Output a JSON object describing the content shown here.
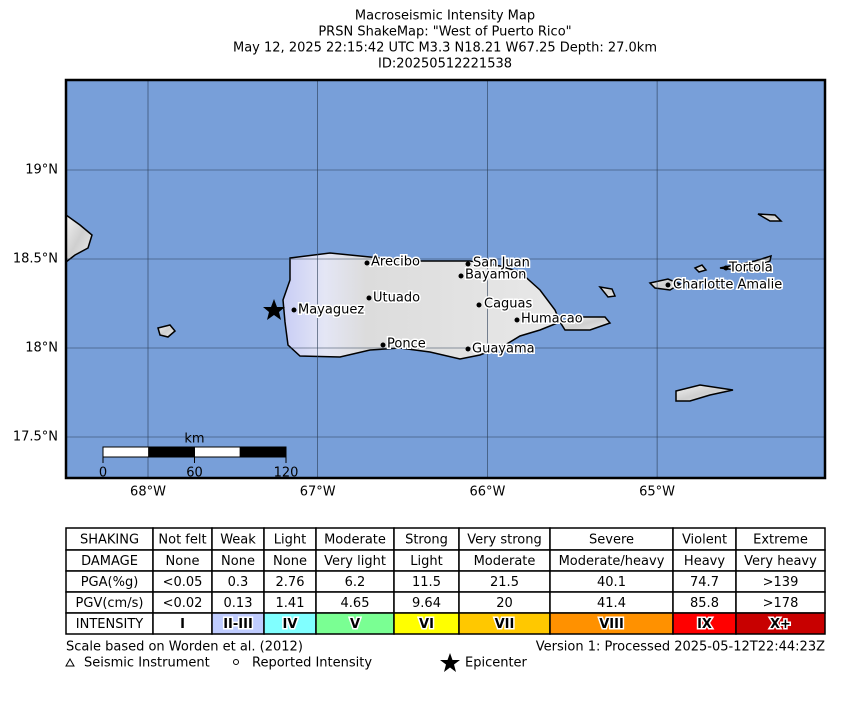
{
  "header": {
    "title": "Macroseismic Intensity Map",
    "subtitle": "PRSN ShakeMap: \"West of Puerto Rico\"",
    "event": "May 12, 2025 22:15:42 UTC M3.3 N18.21 W67.25 Depth: 27.0km",
    "id": "ID:20250512221538"
  },
  "map": {
    "lon_ticks": [
      {
        "value": -68,
        "label": "68°W"
      },
      {
        "value": -67,
        "label": "67°W"
      },
      {
        "value": -66,
        "label": "66°W"
      },
      {
        "value": -65,
        "label": "65°W"
      }
    ],
    "lat_ticks": [
      {
        "value": 19,
        "label": "19°N"
      },
      {
        "value": 18.5,
        "label": "18.5°N"
      },
      {
        "value": 18,
        "label": "18°N"
      },
      {
        "value": 17.5,
        "label": "17.5°N"
      }
    ],
    "cities": [
      "Arecibo",
      "San Juan",
      "Bayamon",
      "Utuado",
      "Caguas",
      "Mayaguez",
      "Humacao",
      "Ponce",
      "Guayama",
      "Tortola",
      "Charlotte Amalie"
    ],
    "scale_bar": {
      "unit": "km",
      "ticks": [
        0,
        60,
        120
      ]
    }
  },
  "table": {
    "rows": [
      [
        "SHAKING",
        "Not felt",
        "Weak",
        "Light",
        "Moderate",
        "Strong",
        "Very strong",
        "Severe",
        "Violent",
        "Extreme"
      ],
      [
        "DAMAGE",
        "None",
        "None",
        "None",
        "Very light",
        "Light",
        "Moderate",
        "Moderate/heavy",
        "Heavy",
        "Very heavy"
      ],
      [
        "PGA(%g)",
        "<0.05",
        "0.3",
        "2.76",
        "6.2",
        "11.5",
        "21.5",
        "40.1",
        "74.7",
        ">139"
      ],
      [
        "PGV(cm/s)",
        "<0.02",
        "0.13",
        "1.41",
        "4.65",
        "9.64",
        "20",
        "41.4",
        "85.8",
        ">178"
      ],
      [
        "INTENSITY",
        "I",
        "II-III",
        "IV",
        "V",
        "VI",
        "VII",
        "VIII",
        "IX",
        "X+"
      ]
    ]
  },
  "footer": {
    "scale_note": "Scale based on Worden et al. (2012)",
    "version": "Version 1: Processed 2025-05-12T22:44:23Z",
    "legend": [
      "Seismic Instrument",
      "Reported Intensity",
      "Epicenter"
    ]
  }
}
